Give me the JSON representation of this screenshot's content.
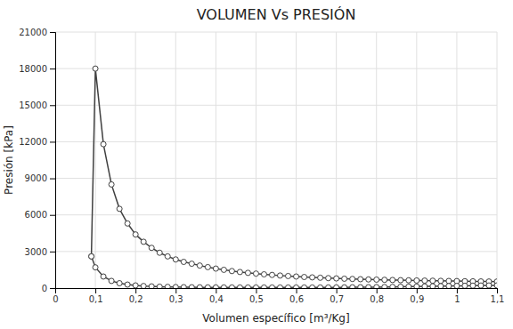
{
  "chart_data": {
    "type": "line",
    "title": "VOLUMEN Vs PRESIÓN",
    "xlabel": "Volumen específico [m³/Kg]",
    "ylabel": "Presión [kPa]",
    "xlim": [
      0,
      1.1
    ],
    "ylim": [
      0,
      21000
    ],
    "xticks": [
      0,
      {
        "value": 0.1,
        "label": "0,1"
      },
      {
        "value": 0.2,
        "label": "0,2"
      },
      {
        "value": 0.3,
        "label": "0,3"
      },
      {
        "value": 0.4,
        "label": "0,4"
      },
      {
        "value": 0.5,
        "label": "0,5"
      },
      {
        "value": 0.6,
        "label": "0,6"
      },
      {
        "value": 0.7,
        "label": "0,7"
      },
      {
        "value": 0.8,
        "label": "0,8"
      },
      {
        "value": 0.9,
        "label": "0,9"
      },
      1,
      {
        "value": 1.1,
        "label": "1,1"
      }
    ],
    "yticks": [
      0,
      3000,
      6000,
      9000,
      12000,
      15000,
      18000,
      21000
    ],
    "grid": true,
    "x": [
      0.09,
      0.1,
      0.12,
      0.14,
      0.16,
      0.18,
      0.2,
      0.22,
      0.24,
      0.26,
      0.28,
      0.3,
      0.32,
      0.34,
      0.36,
      0.38,
      0.4,
      0.42,
      0.44,
      0.46,
      0.48,
      0.5,
      0.52,
      0.54,
      0.56,
      0.58,
      0.6,
      0.62,
      0.64,
      0.66,
      0.68,
      0.7,
      0.72,
      0.74,
      0.76,
      0.78,
      0.8,
      0.82,
      0.84,
      0.86,
      0.88,
      0.9,
      0.92,
      0.94,
      0.96,
      0.98,
      1.0,
      1.02,
      1.04,
      1.06,
      1.08,
      1.1
    ],
    "series": [
      {
        "color": "#404040",
        "marker": "circle",
        "values": [
          2600,
          18000,
          11800,
          8500,
          6500,
          5300,
          4400,
          3800,
          3300,
          2900,
          2600,
          2350,
          2150,
          2000,
          1850,
          1720,
          1600,
          1500,
          1400,
          1320,
          1250,
          1190,
          1130,
          1080,
          1030,
          990,
          950,
          910,
          880,
          850,
          820,
          795,
          770,
          750,
          730,
          710,
          695,
          680,
          665,
          650,
          640,
          625,
          615,
          605,
          595,
          585,
          575,
          565,
          555,
          548,
          540,
          535
        ]
      },
      {
        "color": "#404040",
        "marker": "circle",
        "values": [
          2600,
          1700,
          950,
          590,
          400,
          290,
          220,
          170,
          140,
          115,
          100,
          85,
          75,
          68,
          63,
          58,
          55,
          53,
          52,
          50,
          49,
          48,
          47,
          47,
          47,
          47,
          47,
          47,
          47,
          50,
          53,
          56,
          60,
          65,
          70,
          75,
          80,
          90,
          100,
          110,
          120,
          130,
          140,
          150,
          160,
          170,
          180,
          190,
          200,
          210,
          215,
          220
        ]
      }
    ]
  }
}
